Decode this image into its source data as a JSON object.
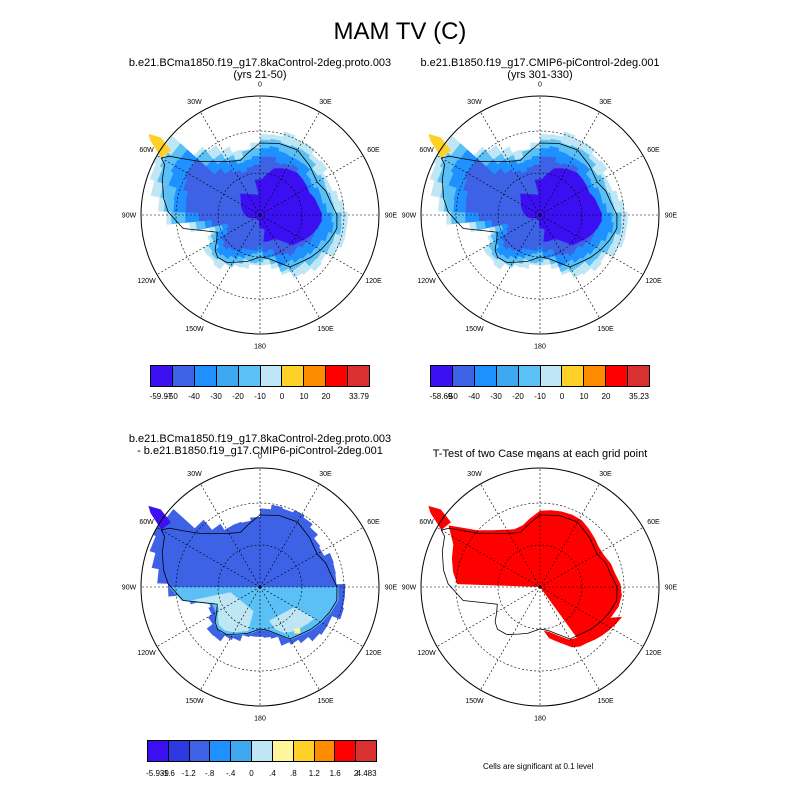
{
  "title": "MAM TV (C)",
  "panels": [
    {
      "id": "p1",
      "title_line1": "b.e21.BCma1850.f19_g17.8kaControl-2deg.proto.003",
      "title_line2": "(yrs 21-50)"
    },
    {
      "id": "p2",
      "title_line1": "b.e21.B1850.f19_g17.CMIP6-piControl-2deg.001",
      "title_line2": "(yrs 301-330)"
    },
    {
      "id": "p3",
      "title_line1": "b.e21.BCma1850.f19_g17.8kaControl-2deg.proto.003",
      "title_line2": "- b.e21.B1850.f19_g17.CMIP6-piControl-2deg.001"
    },
    {
      "id": "p4",
      "title_line1": "T-Test of two Case means at each grid point",
      "title_line2": ""
    }
  ],
  "longitude_labels": [
    "0",
    "30E",
    "60E",
    "90E",
    "120E",
    "150E",
    "180",
    "150W",
    "120W",
    "90W",
    "60W",
    "30W"
  ],
  "colorbars": {
    "cb1": {
      "colors": [
        "#3b0ff2",
        "#3d62e6",
        "#1e90ff",
        "#3da8f0",
        "#5ac0f5",
        "#bfe6f5",
        "#ffd028",
        "#ff8c00",
        "#ff0000",
        "#d93030"
      ],
      "labels": [
        "-59.97",
        "-50",
        "-40",
        "-30",
        "-20",
        "-10",
        "0",
        "10",
        "20",
        "33.79"
      ]
    },
    "cb2": {
      "colors": [
        "#3b0ff2",
        "#3d62e6",
        "#1e90ff",
        "#3da8f0",
        "#5ac0f5",
        "#bfe6f5",
        "#ffd028",
        "#ff8c00",
        "#ff0000",
        "#d93030"
      ],
      "labels": [
        "-58.69",
        "-50",
        "-40",
        "-30",
        "-20",
        "-10",
        "0",
        "10",
        "20",
        "35.23"
      ]
    },
    "cb3": {
      "colors": [
        "#3b0ff2",
        "#2d38e0",
        "#3d62e6",
        "#1e90ff",
        "#3da8f0",
        "#bfe6f5",
        "#fff59a",
        "#ffd028",
        "#ff8c00",
        "#ff0000",
        "#d93030"
      ],
      "labels": [
        "-5.939",
        "-1.6",
        "-1.2",
        "-.8",
        "-.4",
        "0",
        ".4",
        ".8",
        "1.2",
        "1.6",
        "2",
        "4.483"
      ]
    }
  },
  "footnote": "Cells are significant at 0.1 level",
  "map_colors": {
    "ocean_mask_fill": "#bfe6f5",
    "outer_shelf": "#5ac0f5",
    "mid_ice": "#1e90ff",
    "inner_ice": "#3d62e6",
    "plateau": "#3b0ff2",
    "peninsula_yellow": "#ffd028",
    "diff_base": "#3d62e6",
    "diff_light": "#5ac0f5",
    "diff_pale": "#bfe6f5",
    "diff_yellow": "#fff59a",
    "ttest_sig": "#ff0000"
  }
}
